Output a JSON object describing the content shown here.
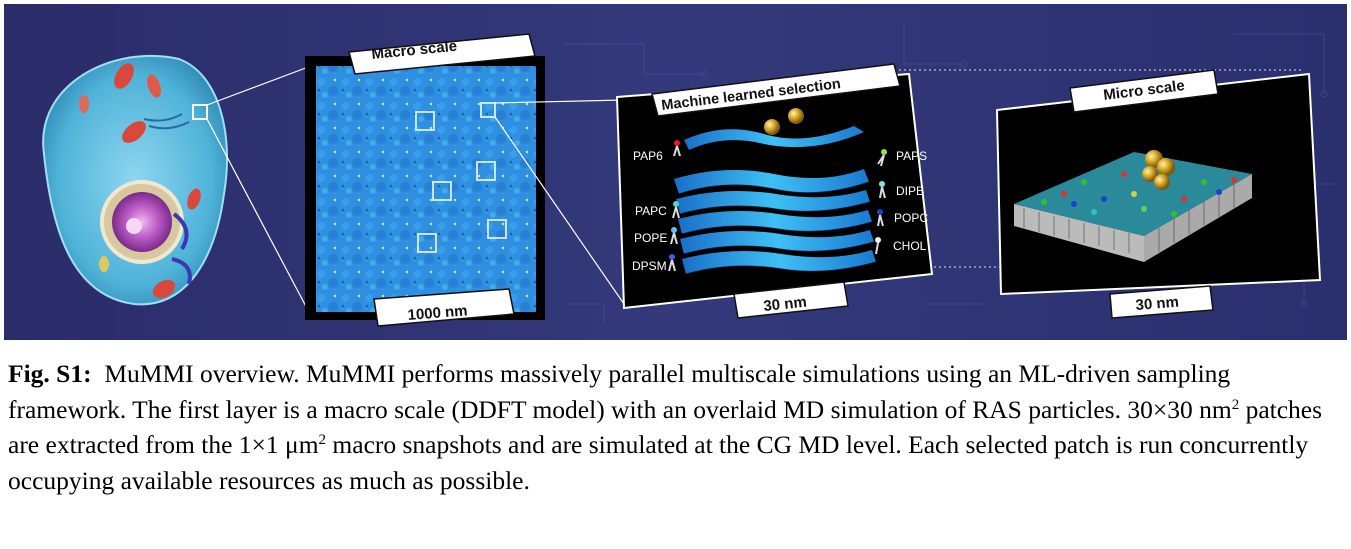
{
  "figure": {
    "panels": {
      "macro": {
        "title": "Macro scale",
        "scale_label": "1000 nm"
      },
      "ml": {
        "title": "Machine learned selection",
        "scale_label": "30 nm",
        "lipids_left": [
          "PAP6",
          "PAPC",
          "POPE",
          "DPSM"
        ],
        "lipids_right": [
          "PAPS",
          "DIPE",
          "POPC",
          "CHOL"
        ]
      },
      "micro": {
        "title": "Micro scale",
        "scale_label": "30 nm"
      }
    },
    "colors": {
      "background": "#2d3170",
      "macro_field": "#2f8fe0",
      "ml_layer": "#2ba8ee",
      "ras_gold": "#d4a82a"
    }
  },
  "caption": {
    "label": "Fig. S1:",
    "part1": "MuMMI overview. MuMMI performs massively parallel multiscale simulations using an ML-driven sampling framework. The first layer is a macro scale (DDFT model) with an overlaid MD simulation of RAS particles. 30×30 nm",
    "sup1": "2",
    "part2": " patches are extracted from the 1×1 μm",
    "sup2": "2",
    "part3": " macro snapshots and are simulated at the CG MD level. Each selected patch is run concurrently occupying available resources as much as possible."
  }
}
